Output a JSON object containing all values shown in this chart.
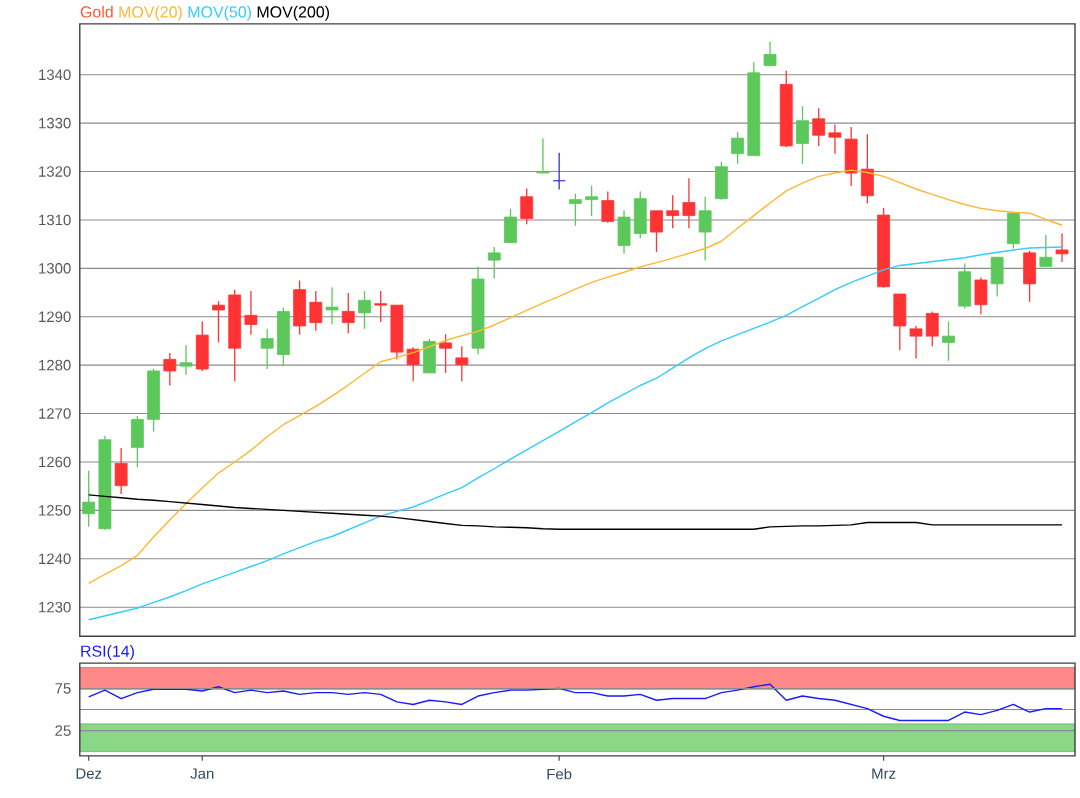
{
  "chart_data": [
    {
      "type": "candlestick",
      "ylim": [
        1224,
        1350.5
      ],
      "yticks": [
        1230,
        1240,
        1250,
        1260,
        1270,
        1280,
        1290,
        1300,
        1310,
        1320,
        1330,
        1340
      ],
      "grid": "y",
      "legend": "top left",
      "tick_labels": "y",
      "categories": [
        null,
        null,
        null,
        null,
        null,
        null,
        null,
        null,
        null,
        null,
        null,
        null,
        null,
        null,
        null,
        null,
        null,
        null,
        null,
        null,
        null,
        null,
        null,
        null,
        null,
        null,
        null,
        null,
        null,
        null,
        null,
        null,
        null,
        null,
        null,
        null,
        null,
        null,
        null,
        null,
        null,
        null,
        null,
        null,
        null,
        null,
        null,
        null,
        null,
        null,
        null,
        null,
        null,
        null,
        null,
        null,
        null,
        null,
        null,
        null,
        null
      ],
      "series": [
        {
          "name": "Gold",
          "color": "#ff5533",
          "ohlc": [
            [
              1249.3,
              1258.2,
              1246.6,
              1251.7
            ],
            [
              1246.2,
              1265.4,
              1246.0,
              1264.6
            ],
            [
              1259.7,
              1262.9,
              1253.4,
              1255.1
            ],
            [
              1263.0,
              1269.5,
              1258.9,
              1268.8
            ],
            [
              1268.8,
              1279.2,
              1266.3,
              1278.8
            ],
            [
              1281.2,
              1282.5,
              1275.8,
              1278.8
            ],
            [
              1279.8,
              1284.1,
              1278.0,
              1280.5
            ],
            [
              1286.2,
              1289.0,
              1278.8,
              1279.2
            ],
            [
              1292.4,
              1293.2,
              1284.7,
              1291.4
            ],
            [
              1294.5,
              1295.6,
              1276.7,
              1283.5
            ],
            [
              1290.3,
              1295.3,
              1286.3,
              1288.4
            ],
            [
              1283.5,
              1287.5,
              1279.2,
              1285.5
            ],
            [
              1282.2,
              1291.9,
              1279.8,
              1291.1
            ],
            [
              1295.6,
              1297.5,
              1286.3,
              1288.1
            ],
            [
              1293.0,
              1295.3,
              1287.1,
              1288.8
            ],
            [
              1291.4,
              1296.1,
              1288.4,
              1292.0
            ],
            [
              1291.1,
              1294.9,
              1286.6,
              1288.8
            ],
            [
              1290.8,
              1295.3,
              1287.5,
              1293.4
            ],
            [
              1292.7,
              1295.3,
              1288.9,
              1292.4
            ],
            [
              1292.4,
              1292.4,
              1281.2,
              1282.7
            ],
            [
              1283.3,
              1283.7,
              1276.7,
              1280.1
            ],
            [
              1278.4,
              1285.4,
              1278.4,
              1284.9
            ],
            [
              1284.6,
              1286.4,
              1278.4,
              1283.5
            ],
            [
              1281.5,
              1283.9,
              1276.7,
              1280.1
            ],
            [
              1283.5,
              1300.4,
              1282.2,
              1297.8
            ],
            [
              1301.7,
              1304.4,
              1297.9,
              1303.2
            ],
            [
              1305.3,
              1312.3,
              1305.3,
              1310.6
            ],
            [
              1314.8,
              1316.5,
              1309.1,
              1310.3
            ],
            [
              1319.7,
              1326.9,
              1319.7,
              1320.0
            ],
            [
              1318.1,
              1323.9,
              1316.3,
              1318.1
            ],
            [
              1313.4,
              1315.4,
              1308.8,
              1314.2
            ],
            [
              1314.2,
              1317.1,
              1310.8,
              1314.8
            ],
            [
              1314.0,
              1315.9,
              1309.4,
              1309.7
            ],
            [
              1304.7,
              1312.0,
              1303.0,
              1310.6
            ],
            [
              1307.2,
              1315.9,
              1306.2,
              1314.4
            ],
            [
              1311.9,
              1311.9,
              1303.4,
              1307.5
            ],
            [
              1311.9,
              1315.1,
              1308.3,
              1310.9
            ],
            [
              1313.6,
              1318.6,
              1308.3,
              1310.9
            ],
            [
              1307.5,
              1314.8,
              1301.7,
              1311.9
            ],
            [
              1314.4,
              1322.0,
              1314.2,
              1321.0
            ],
            [
              1323.7,
              1328.2,
              1321.6,
              1326.9
            ],
            [
              1323.3,
              1342.6,
              1323.3,
              1340.4
            ],
            [
              1341.9,
              1346.8,
              1341.9,
              1344.2
            ],
            [
              1338.0,
              1340.8,
              1325.0,
              1325.3
            ],
            [
              1325.8,
              1333.5,
              1321.6,
              1330.5
            ],
            [
              1330.9,
              1333.1,
              1325.3,
              1327.5
            ],
            [
              1328.0,
              1329.7,
              1323.7,
              1327.1
            ],
            [
              1326.7,
              1329.2,
              1317.0,
              1319.7
            ],
            [
              1320.5,
              1327.7,
              1313.4,
              1315.0
            ],
            [
              1311.0,
              1312.5,
              1296.0,
              1296.2
            ],
            [
              1294.7,
              1294.7,
              1283.1,
              1288.1
            ],
            [
              1287.5,
              1288.1,
              1281.4,
              1286.0
            ],
            [
              1290.7,
              1291.1,
              1283.9,
              1286.0
            ],
            [
              1284.7,
              1289.0,
              1280.9,
              1286.0
            ],
            [
              1292.2,
              1301.0,
              1291.7,
              1299.3
            ],
            [
              1297.6,
              1298.1,
              1290.5,
              1292.5
            ],
            [
              1296.8,
              1302.3,
              1294.2,
              1302.3
            ],
            [
              1305.1,
              1311.7,
              1304.1,
              1311.4
            ],
            [
              1303.2,
              1303.6,
              1293.1,
              1296.8
            ],
            [
              1300.4,
              1306.9,
              1300.4,
              1302.3
            ],
            [
              1303.8,
              1307.2,
              1301.3,
              1303.0
            ]
          ],
          "colors": [
            "#5cc85c",
            "#5cc85c",
            "#ff3333",
            "#5cc85c",
            "#5cc85c",
            "#ff3333",
            "#5cc85c",
            "#ff3333",
            "#ff3333",
            "#ff3333",
            "#ff3333",
            "#5cc85c",
            "#5cc85c",
            "#ff3333",
            "#ff3333",
            "#5cc85c",
            "#ff3333",
            "#5cc85c",
            "#ff3333",
            "#ff3333",
            "#ff3333",
            "#5cc85c",
            "#ff3333",
            "#ff3333",
            "#5cc85c",
            "#5cc85c",
            "#5cc85c",
            "#ff3333",
            "#5cc85c",
            "#3333cc",
            "#5cc85c",
            "#5cc85c",
            "#ff3333",
            "#5cc85c",
            "#5cc85c",
            "#ff3333",
            "#ff3333",
            "#ff3333",
            "#5cc85c",
            "#5cc85c",
            "#5cc85c",
            "#5cc85c",
            "#5cc85c",
            "#ff3333",
            "#5cc85c",
            "#ff3333",
            "#ff3333",
            "#ff3333",
            "#ff3333",
            "#ff3333",
            "#ff3333",
            "#ff3333",
            "#ff3333",
            "#5cc85c",
            "#5cc85c",
            "#ff3333",
            "#5cc85c",
            "#5cc85c",
            "#ff3333",
            "#5cc85c",
            "#ff3333"
          ]
        },
        {
          "name": "MOV(20)",
          "type": "line",
          "color": "#ffb733",
          "values": [
            1234.9,
            1236.8,
            1238.6,
            1240.7,
            1244.5,
            1248.0,
            1251.4,
            1254.6,
            1257.7,
            1260.0,
            1262.4,
            1265.2,
            1267.7,
            1269.6,
            1271.5,
            1273.6,
            1275.9,
            1278.3,
            1280.7,
            1281.6,
            1282.6,
            1283.8,
            1285.1,
            1286.1,
            1287.0,
            1288.3,
            1289.8,
            1291.3,
            1292.8,
            1294.2,
            1295.7,
            1297.1,
            1298.2,
            1299.2,
            1300.3,
            1301.2,
            1302.1,
            1303.1,
            1304.1,
            1305.6,
            1308.3,
            1310.9,
            1313.5,
            1316.0,
            1317.6,
            1319.0,
            1319.7,
            1320.3,
            1319.8,
            1319.0,
            1317.7,
            1316.4,
            1315.3,
            1314.2,
            1313.2,
            1312.4,
            1311.9,
            1311.6,
            1311.4,
            1310.1,
            1308.9
          ]
        },
        {
          "name": "MOV(50)",
          "type": "line",
          "color": "#33ccff",
          "values": [
            1227.4,
            1228.2,
            1229.0,
            1229.8,
            1231.0,
            1232.1,
            1233.4,
            1234.8,
            1236.0,
            1237.2,
            1238.4,
            1239.6,
            1241.0,
            1242.3,
            1243.6,
            1244.6,
            1246.0,
            1247.4,
            1248.8,
            1249.8,
            1250.7,
            1252.0,
            1253.4,
            1254.7,
            1256.7,
            1258.6,
            1260.6,
            1262.5,
            1264.4,
            1266.3,
            1268.3,
            1270.2,
            1272.2,
            1274.0,
            1275.8,
            1277.3,
            1279.4,
            1281.5,
            1283.4,
            1285.0,
            1286.3,
            1287.6,
            1288.9,
            1290.3,
            1292.1,
            1293.8,
            1295.6,
            1297.1,
            1298.4,
            1299.7,
            1300.6,
            1301.0,
            1301.4,
            1301.8,
            1302.2,
            1302.8,
            1303.3,
            1303.8,
            1304.2,
            1304.3,
            1304.4
          ]
        },
        {
          "name": "MOV(200)",
          "type": "line",
          "color": "#000000",
          "values": [
            1253.2,
            1252.9,
            1252.6,
            1252.3,
            1252.1,
            1251.8,
            1251.5,
            1251.2,
            1250.9,
            1250.6,
            1250.4,
            1250.2,
            1250.0,
            1249.8,
            1249.6,
            1249.4,
            1249.2,
            1249.0,
            1248.8,
            1248.5,
            1248.1,
            1247.7,
            1247.3,
            1246.9,
            1246.8,
            1246.6,
            1246.5,
            1246.4,
            1246.2,
            1246.1,
            1246.1,
            1246.1,
            1246.1,
            1246.1,
            1246.1,
            1246.1,
            1246.1,
            1246.1,
            1246.1,
            1246.1,
            1246.1,
            1246.1,
            1246.6,
            1246.7,
            1246.8,
            1246.8,
            1246.9,
            1247.0,
            1247.5,
            1247.5,
            1247.5,
            1247.5,
            1247.0,
            1247.0,
            1247.0,
            1247.0,
            1247.0,
            1247.0,
            1247.0,
            1247.0,
            1247.0
          ]
        }
      ]
    },
    {
      "type": "line",
      "ylim": [
        -5,
        105
      ],
      "yticks": [
        25,
        75
      ],
      "grid": "y",
      "legend": "top left",
      "categories": [
        "Dez",
        null,
        null,
        null,
        null,
        null,
        null,
        "Jan",
        null,
        null,
        null,
        null,
        null,
        null,
        null,
        null,
        null,
        null,
        null,
        null,
        null,
        null,
        null,
        null,
        null,
        null,
        null,
        null,
        null,
        "Feb",
        null,
        null,
        null,
        null,
        null,
        null,
        null,
        null,
        null,
        null,
        null,
        null,
        null,
        null,
        null,
        null,
        null,
        null,
        null,
        "Mrz",
        null,
        null,
        null,
        null,
        null,
        null,
        null,
        null,
        null,
        null,
        null
      ],
      "bands": [
        {
          "axis": "y",
          "from": 74,
          "to": 100,
          "color": "#ff8888"
        },
        {
          "axis": "y",
          "from": 0,
          "to": 33,
          "color": "#88d888"
        }
      ],
      "ref_lines": [
        {
          "axis": "y",
          "value": 50,
          "color": "#888888"
        }
      ],
      "series": [
        {
          "name": "RSI(14)",
          "color": "#1a1aff",
          "values": [
            65,
            73,
            63,
            70,
            74,
            74,
            74,
            72,
            77,
            70,
            73,
            70,
            72,
            68,
            70,
            70,
            68,
            70,
            68,
            59,
            56,
            61,
            59,
            56,
            66,
            70,
            73,
            73,
            74,
            75,
            70,
            70,
            66,
            66,
            68,
            61,
            63,
            63,
            63,
            70,
            73,
            77,
            80,
            61,
            66,
            63,
            61,
            56,
            51,
            42,
            37,
            37,
            37,
            37,
            47,
            44,
            49,
            56,
            47,
            51,
            51
          ]
        }
      ]
    }
  ]
}
